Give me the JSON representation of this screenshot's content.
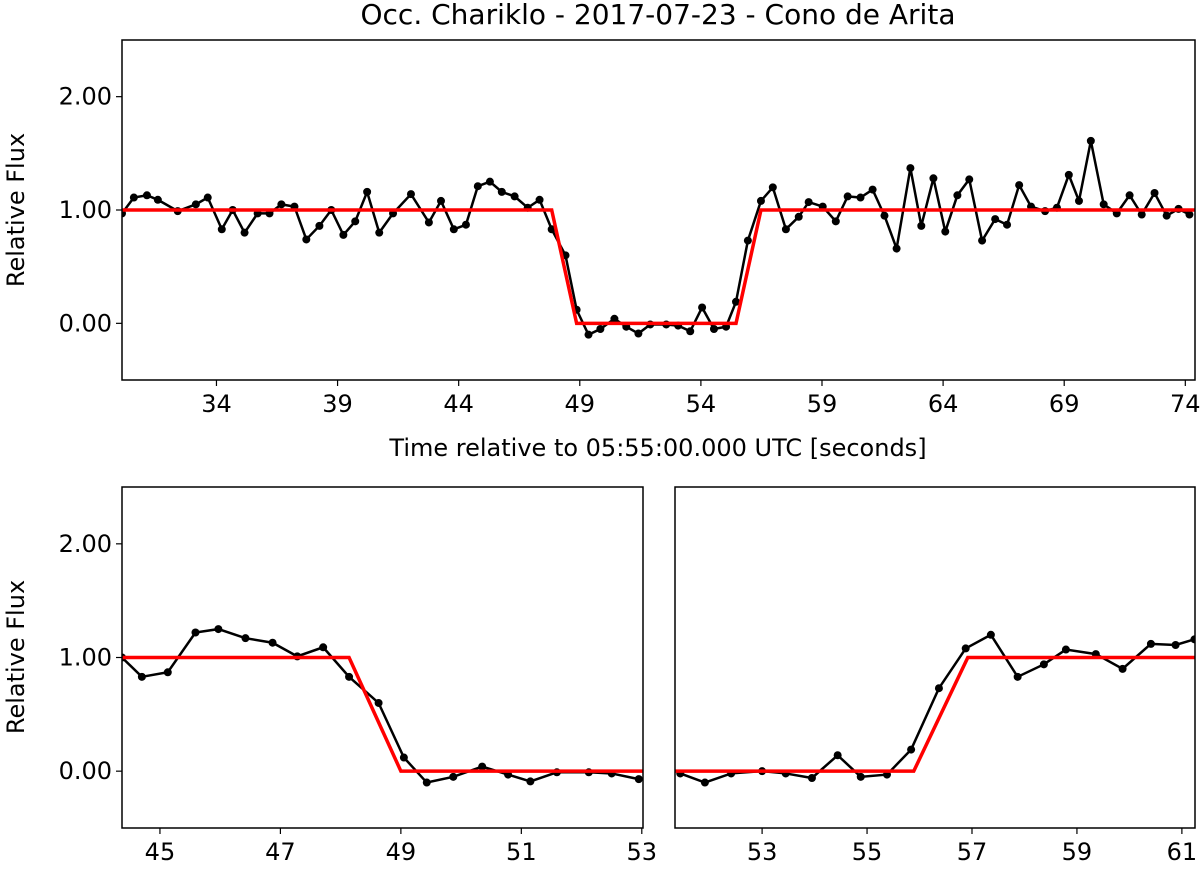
{
  "chart_data": [
    {
      "type": "line",
      "title": "Occ. Chariklo - 2017-07-23 - Cono de Arita",
      "xlabel": "Time relative to 05:55:00.000 UTC [seconds]",
      "ylabel": "Relative Flux",
      "xlim": [
        30.1,
        74.4
      ],
      "xticks": [
        34,
        39,
        44,
        49,
        54,
        59,
        64,
        69,
        74
      ],
      "ylim": [
        -0.5,
        2.5
      ],
      "yticks": [
        {
          "value": 0,
          "label": "0.00"
        },
        {
          "value": 1,
          "label": "1.00"
        },
        {
          "value": 2,
          "label": "2.00"
        }
      ],
      "series": [
        {
          "color": "#000000",
          "markers": true,
          "x": [
            30.1,
            30.59,
            31.13,
            31.58,
            32.4,
            33.15,
            33.64,
            34.22,
            34.67,
            35.16,
            35.7,
            36.19,
            36.68,
            37.22,
            37.71,
            38.25,
            38.74,
            39.24,
            39.73,
            40.22,
            40.72,
            41.29,
            42.03,
            42.77,
            43.27,
            43.8,
            44.3,
            44.79,
            45.29,
            45.78,
            46.31,
            46.85,
            47.34,
            47.84,
            48.41,
            48.87,
            49.36,
            49.85,
            50.43,
            50.92,
            51.42,
            51.91,
            52.57,
            53.06,
            53.56,
            54.05,
            54.54,
            55.04,
            55.45,
            55.94,
            56.48,
            56.97,
            57.51,
            58.04,
            58.45,
            59.03,
            59.57,
            60.06,
            60.59,
            61.09,
            61.58,
            62.08,
            62.65,
            63.1,
            63.6,
            64.09,
            64.59,
            65.08,
            65.61,
            66.15,
            66.64,
            67.14,
            67.63,
            68.21,
            68.7,
            69.19,
            69.61,
            70.1,
            70.63,
            71.17,
            71.7,
            72.2,
            72.73,
            73.23,
            73.72,
            74.17
          ],
          "values": [
            0.97,
            1.11,
            1.13,
            1.09,
            0.99,
            1.05,
            1.11,
            0.83,
            1.0,
            0.8,
            0.97,
            0.97,
            1.05,
            1.03,
            0.74,
            0.86,
            1.0,
            0.78,
            0.9,
            1.16,
            0.8,
            0.97,
            1.14,
            0.89,
            1.08,
            0.83,
            0.87,
            1.21,
            1.25,
            1.16,
            1.12,
            1.02,
            1.09,
            0.83,
            0.6,
            0.12,
            -0.1,
            -0.05,
            0.04,
            -0.03,
            -0.09,
            -0.01,
            -0.01,
            -0.02,
            -0.07,
            0.14,
            -0.05,
            -0.03,
            0.19,
            0.73,
            1.08,
            1.2,
            0.83,
            0.94,
            1.07,
            1.03,
            0.9,
            1.12,
            1.11,
            1.18,
            0.95,
            0.66,
            1.37,
            0.86,
            1.28,
            0.81,
            1.13,
            1.27,
            0.73,
            0.92,
            0.87,
            1.22,
            1.03,
            0.99,
            1.02,
            1.31,
            1.08,
            1.61,
            1.05,
            0.97,
            1.13,
            0.96,
            1.15,
            0.95,
            1.01,
            0.96
          ]
        },
        {
          "color": "#ff0000",
          "x": [
            30.1,
            47.84,
            48.87,
            55.45,
            56.48,
            74.4
          ],
          "values": [
            1,
            1,
            0,
            0,
            1,
            1
          ]
        }
      ]
    },
    {
      "type": "line",
      "ylabel": "Relative Flux",
      "xlim": [
        44.37,
        53.02
      ],
      "xticks": [
        45,
        47,
        49,
        51,
        53
      ],
      "ylim": [
        -0.5,
        2.5
      ],
      "yticks": [
        {
          "value": 0,
          "label": "0.00"
        },
        {
          "value": 1,
          "label": "1.00"
        },
        {
          "value": 2,
          "label": "2.00"
        }
      ],
      "series": [
        {
          "color": "#000000",
          "markers": true,
          "x": [
            44.37,
            44.7,
            45.13,
            45.59,
            45.97,
            46.42,
            46.87,
            47.28,
            47.71,
            48.14,
            48.63,
            49.05,
            49.43,
            49.87,
            50.35,
            50.78,
            51.15,
            51.59,
            52.12,
            52.5,
            52.95
          ],
          "values": [
            1.0,
            0.83,
            0.87,
            1.22,
            1.25,
            1.17,
            1.13,
            1.01,
            1.09,
            0.83,
            0.6,
            0.12,
            -0.1,
            -0.05,
            0.04,
            -0.03,
            -0.09,
            -0.01,
            -0.01,
            -0.02,
            -0.07
          ]
        },
        {
          "color": "#ff0000",
          "x": [
            44.37,
            48.14,
            49.0,
            53.02
          ],
          "values": [
            1,
            1,
            0,
            0
          ]
        }
      ]
    },
    {
      "type": "line",
      "xlim": [
        51.34,
        61.25
      ],
      "xticks": [
        53,
        55,
        57,
        59,
        61
      ],
      "ylim": [
        -0.5,
        2.5
      ],
      "series": [
        {
          "color": "#000000",
          "markers": true,
          "x": [
            51.44,
            51.91,
            52.41,
            53.0,
            53.45,
            53.95,
            54.44,
            54.88,
            55.38,
            55.84,
            56.37,
            56.88,
            57.36,
            57.87,
            58.37,
            58.79,
            59.36,
            59.87,
            60.41,
            60.88,
            61.24
          ],
          "values": [
            -0.02,
            -0.1,
            -0.02,
            0.0,
            -0.02,
            -0.06,
            0.14,
            -0.05,
            -0.03,
            0.19,
            0.73,
            1.08,
            1.2,
            0.83,
            0.94,
            1.07,
            1.03,
            0.9,
            1.12,
            1.11,
            1.16
          ]
        },
        {
          "color": "#ff0000",
          "x": [
            51.34,
            55.89,
            56.92,
            61.25
          ],
          "values": [
            0,
            0,
            1,
            1
          ]
        }
      ]
    }
  ]
}
